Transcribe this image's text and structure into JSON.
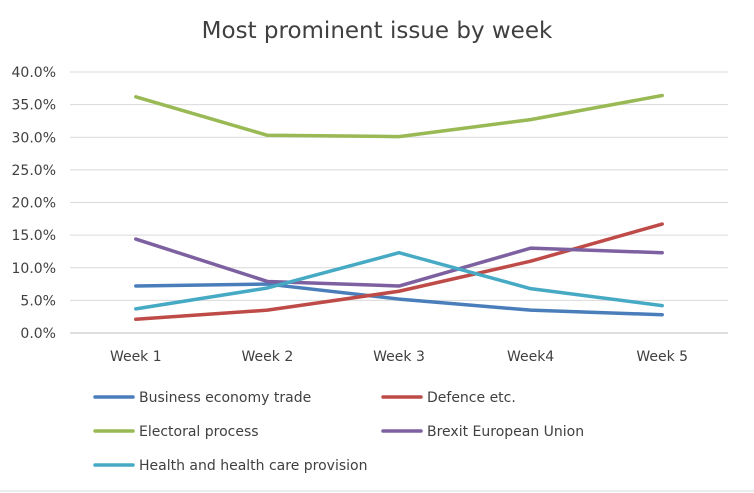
{
  "chart_data": {
    "type": "line",
    "title": "Most prominent issue by week",
    "categories": [
      "Week 1",
      "Week 2",
      "Week 3",
      "Week4",
      "Week 5"
    ],
    "y_ticks": [
      "0.0%",
      "5.0%",
      "10.0%",
      "15.0%",
      "20.0%",
      "25.0%",
      "30.0%",
      "35.0%",
      "40.0%"
    ],
    "ylim": [
      0,
      40
    ],
    "y_unit": "%",
    "grid": "horizontal",
    "legend_position": "bottom",
    "series": [
      {
        "name": "Business economy trade",
        "color": "#4a7ebb",
        "values": [
          7.2,
          7.5,
          5.2,
          3.5,
          2.8
        ]
      },
      {
        "name": "Defence etc.",
        "color": "#be4b48",
        "values": [
          2.1,
          3.5,
          6.4,
          11.0,
          16.7
        ]
      },
      {
        "name": "Electoral process",
        "color": "#98b954",
        "values": [
          36.2,
          30.3,
          30.1,
          32.7,
          36.4
        ]
      },
      {
        "name": "Brexit European Union",
        "color": "#7d60a0",
        "values": [
          14.4,
          7.9,
          7.2,
          13.0,
          12.3
        ]
      },
      {
        "name": "Health and health care provision",
        "color": "#46aac5",
        "values": [
          3.7,
          6.9,
          12.3,
          6.8,
          4.2
        ]
      }
    ]
  }
}
